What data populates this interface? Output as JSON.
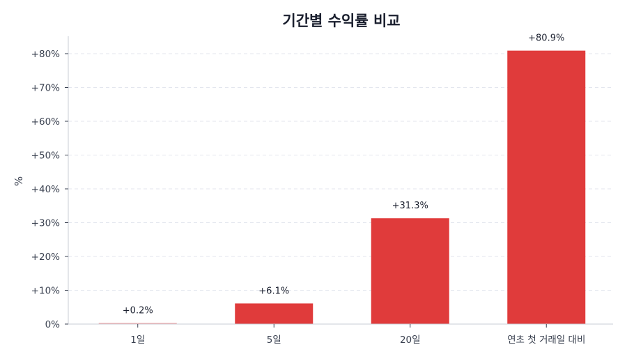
{
  "chart_data": {
    "type": "bar",
    "title": "기간별 수익률 비교",
    "xlabel": "",
    "ylabel": "%",
    "categories": [
      "1일",
      "5일",
      "20일",
      "연초 첫 거래일 대비"
    ],
    "values": [
      0.2,
      6.1,
      31.3,
      80.9
    ],
    "data_labels": [
      "+0.2%",
      "+6.1%",
      "+31.3%",
      "+80.9%"
    ],
    "ylim": [
      0,
      85
    ],
    "yticks": [
      0,
      10,
      20,
      30,
      40,
      50,
      60,
      70,
      80
    ],
    "ytick_labels": [
      "0%",
      "+10%",
      "+20%",
      "+30%",
      "+40%",
      "+50%",
      "+60%",
      "+70%",
      "+80%"
    ],
    "grid": true,
    "bar_color": "#e03b3b",
    "small_bar_color": "#f2a0a0"
  }
}
